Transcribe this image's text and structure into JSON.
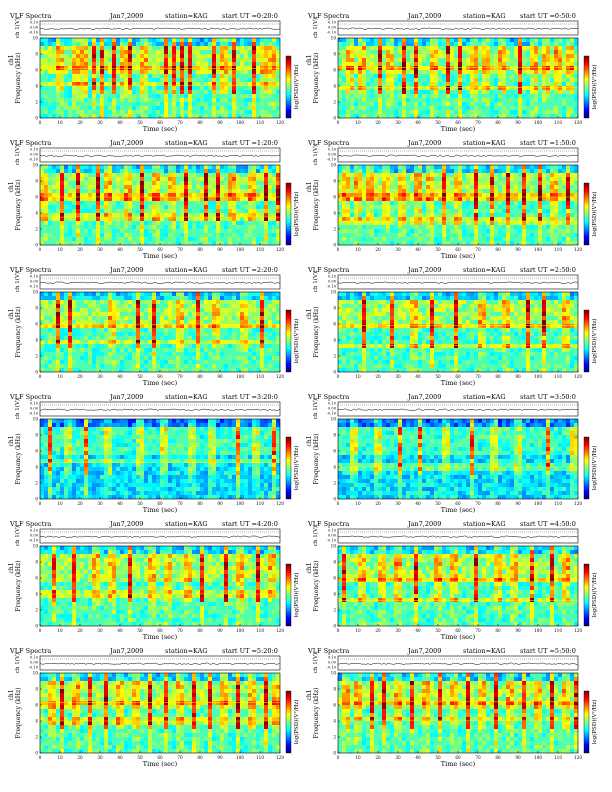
{
  "chart_data": [
    {
      "type": "heatmap",
      "title_parts": [
        "VLF Spectra",
        "Jan7,2009",
        "station=KAG",
        "start UT =0:20:0"
      ],
      "xlabel": "Time (sec)",
      "ylabel": "Frequency (kHz)",
      "top_ylabel": "ch 1(V)",
      "top_ticks": [
        "0.10",
        "0.00",
        "-0.10"
      ],
      "colorbar_label": "log(PSD)(V²/Hz)",
      "xlim": [
        0,
        120
      ],
      "ylim": [
        0,
        10
      ],
      "xticks": [
        "0",
        "10",
        "20",
        "30",
        "40",
        "50",
        "60",
        "70",
        "80",
        "90",
        "100",
        "110",
        "120"
      ],
      "yticks": [
        "0",
        "2",
        "4",
        "6",
        "8",
        "10"
      ],
      "channel_label": "ch1",
      "bursts": [
        10,
        18,
        22,
        27,
        31,
        37,
        42,
        45,
        52,
        63,
        67,
        71,
        75,
        87,
        92,
        97,
        107,
        112,
        116
      ],
      "lines": [
        6.2,
        4.1
      ]
    },
    {
      "type": "heatmap",
      "title_parts": [
        "VLF Spectra",
        "Jan7,2009",
        "station=KAG",
        "start UT =0:50:0"
      ],
      "xlabel": "Time (sec)",
      "ylabel": "Frequency (kHz)",
      "top_ylabel": "ch 1(V)",
      "top_ticks": [
        "0.10",
        "0.00",
        "-0.10"
      ],
      "colorbar_label": "log(PSD)(V²/Hz)",
      "xlim": [
        0,
        120
      ],
      "ylim": [
        0,
        10
      ],
      "xticks": [
        "0",
        "10",
        "20",
        "30",
        "40",
        "50",
        "60",
        "70",
        "80",
        "90",
        "100",
        "110",
        "120"
      ],
      "yticks": [
        "0",
        "2",
        "4",
        "6",
        "8",
        "10"
      ],
      "channel_label": "ch1",
      "bursts": [
        6,
        12,
        21,
        26,
        33,
        39,
        48,
        55,
        61,
        68,
        74,
        82,
        91,
        98,
        104,
        110,
        116
      ],
      "lines": [
        6.3,
        3.8
      ]
    },
    {
      "type": "heatmap",
      "title_parts": [
        "VLF Spectra",
        "Jan7,2009",
        "station=KAG",
        "start UT =1:20:0"
      ],
      "xlabel": "Time (sec)",
      "ylabel": "Frequency (kHz)",
      "top_ylabel": "ch 1(V)",
      "top_ticks": [
        "0.10",
        "0.00",
        "-0.10"
      ],
      "colorbar_label": "log(PSD)(V²/Hz)",
      "xlim": [
        0,
        120
      ],
      "ylim": [
        0,
        10
      ],
      "xticks": [
        "0",
        "10",
        "20",
        "30",
        "40",
        "50",
        "60",
        "70",
        "80",
        "90",
        "100",
        "110",
        "120"
      ],
      "yticks": [
        "0",
        "2",
        "4",
        "6",
        "8",
        "10"
      ],
      "channel_label": "ch1",
      "bursts": [
        2,
        11,
        19,
        29,
        34,
        44,
        51,
        58,
        66,
        73,
        83,
        89,
        96,
        106,
        113,
        119
      ],
      "lines": [
        6.0,
        3.5
      ]
    },
    {
      "type": "heatmap",
      "title_parts": [
        "VLF Spectra",
        "Jan7,2009",
        "station=KAG",
        "start UT =1:50:0"
      ],
      "xlabel": "Time (sec)",
      "ylabel": "Frequency (kHz)",
      "top_ylabel": "ch 1(V)",
      "top_ticks": [
        "0.10",
        "0.00",
        "-0.10"
      ],
      "colorbar_label": "log(PSD)(V²/Hz)",
      "xlim": [
        0,
        120
      ],
      "ylim": [
        0,
        10
      ],
      "xticks": [
        "0",
        "10",
        "20",
        "30",
        "40",
        "50",
        "60",
        "70",
        "80",
        "90",
        "100",
        "110",
        "120"
      ],
      "yticks": [
        "0",
        "2",
        "4",
        "6",
        "8",
        "10"
      ],
      "channel_label": "ch1",
      "bursts": [
        4,
        10,
        16,
        24,
        32,
        40,
        46,
        53,
        60,
        69,
        77,
        85,
        93,
        101,
        108,
        115
      ],
      "lines": [
        6.0,
        3.0
      ]
    },
    {
      "type": "heatmap",
      "title_parts": [
        "VLF Spectra",
        "Jan7,2009",
        "station=KAG",
        "start UT =2:20:0"
      ],
      "xlabel": "Time (sec)",
      "ylabel": "Frequency (kHz)",
      "top_ylabel": "ch 1(V)",
      "top_ticks": [
        "0.10",
        "0.00",
        "-0.10"
      ],
      "colorbar_label": "log(PSD)(V²/Hz)",
      "xlim": [
        0,
        120
      ],
      "ylim": [
        0,
        10
      ],
      "xticks": [
        "0",
        "10",
        "20",
        "30",
        "40",
        "50",
        "60",
        "70",
        "80",
        "90",
        "100",
        "110",
        "120"
      ],
      "yticks": [
        "0",
        "2",
        "4",
        "6",
        "8",
        "10"
      ],
      "channel_label": "ch1",
      "bursts": [
        9,
        15,
        36,
        49,
        57,
        70,
        79,
        88,
        102,
        111
      ],
      "lines": [
        5.9,
        3.6
      ]
    },
    {
      "type": "heatmap",
      "title_parts": [
        "VLF Spectra",
        "Jan7,2009",
        "station=KAG",
        "start UT =2:50:0"
      ],
      "xlabel": "Time (sec)",
      "ylabel": "Frequency (kHz)",
      "top_ylabel": "ch 1(V)",
      "top_ticks": [
        "0.10",
        "0.00",
        "-0.10"
      ],
      "colorbar_label": "log(PSD)(V²/Hz)",
      "xlim": [
        0,
        120
      ],
      "ylim": [
        0,
        10
      ],
      "xticks": [
        "0",
        "10",
        "20",
        "30",
        "40",
        "50",
        "60",
        "70",
        "80",
        "90",
        "100",
        "110",
        "120"
      ],
      "yticks": [
        "0",
        "2",
        "4",
        "6",
        "8",
        "10"
      ],
      "channel_label": "ch1",
      "bursts": [
        13,
        27,
        38,
        47,
        59,
        72,
        84,
        95,
        103,
        114
      ],
      "lines": [
        5.8,
        3.3
      ]
    },
    {
      "type": "heatmap",
      "title_parts": [
        "VLF Spectra",
        "Jan7,2009",
        "station=KAG",
        "start UT =3:20:0"
      ],
      "xlabel": "Time (sec)",
      "ylabel": "Frequency (kHz)",
      "top_ylabel": "ch 1(V)",
      "top_ticks": [
        "0.10",
        "0.00",
        "-0.10"
      ],
      "colorbar_label": "log(PSD)(V²/Hz)",
      "xlim": [
        0,
        120
      ],
      "ylim": [
        0,
        10
      ],
      "xticks": [
        "0",
        "10",
        "20",
        "30",
        "40",
        "50",
        "60",
        "70",
        "80",
        "90",
        "100",
        "110",
        "120"
      ],
      "yticks": [
        "0",
        "2",
        "4",
        "6",
        "8",
        "10"
      ],
      "channel_label": "ch1",
      "bursts": [
        5,
        14,
        23,
        34,
        50,
        62,
        76,
        86,
        99,
        108,
        117
      ],
      "lines": [
        4.6
      ]
    },
    {
      "type": "heatmap",
      "title_parts": [
        "VLF Spectra",
        "Jan7,2009",
        "station=KAG",
        "start UT =3:50:0"
      ],
      "xlabel": "Time (sec)",
      "ylabel": "Frequency (kHz)",
      "top_ylabel": "ch 1(V)",
      "top_ticks": [
        "0.10",
        "0.00",
        "-0.10"
      ],
      "colorbar_label": "log(PSD)(V²/Hz)",
      "xlim": [
        0,
        120
      ],
      "ylim": [
        0,
        10
      ],
      "xticks": [
        "0",
        "10",
        "20",
        "30",
        "40",
        "50",
        "60",
        "70",
        "80",
        "90",
        "100",
        "110",
        "120"
      ],
      "yticks": [
        "0",
        "2",
        "4",
        "6",
        "8",
        "10"
      ],
      "channel_label": "ch1",
      "bursts": [
        8,
        20,
        31,
        41,
        54,
        67,
        78,
        90,
        105,
        118
      ],
      "lines": [
        4.0
      ]
    },
    {
      "type": "heatmap",
      "title_parts": [
        "VLF Spectra",
        "Jan7,2009",
        "station=KAG",
        "start UT =4:20:0"
      ],
      "xlabel": "Time (sec)",
      "ylabel": "Frequency (kHz)",
      "top_ylabel": "ch 1(V)",
      "top_ticks": [
        "0.10",
        "0.00",
        "-0.10"
      ],
      "colorbar_label": "log(PSD)(V²/Hz)",
      "xlim": [
        0,
        120
      ],
      "ylim": [
        0,
        10
      ],
      "xticks": [
        "0",
        "10",
        "20",
        "30",
        "40",
        "50",
        "60",
        "70",
        "80",
        "90",
        "100",
        "110",
        "120"
      ],
      "yticks": [
        "0",
        "2",
        "4",
        "6",
        "8",
        "10"
      ],
      "channel_label": "ch1",
      "bursts": [
        7,
        17,
        28,
        36,
        45,
        56,
        64,
        74,
        81,
        93,
        100,
        109,
        116
      ],
      "lines": [
        4.0
      ]
    },
    {
      "type": "heatmap",
      "title_parts": [
        "VLF Spectra",
        "Jan7,2009",
        "station=KAG",
        "start UT =4:50:0"
      ],
      "xlabel": "Time (sec)",
      "ylabel": "Frequency (kHz)",
      "top_ylabel": "ch 1(V)",
      "top_ticks": [
        "0.10",
        "0.00",
        "-0.10"
      ],
      "colorbar_label": "log(PSD)(V²/Hz)",
      "xlim": [
        0,
        120
      ],
      "ylim": [
        0,
        10
      ],
      "xticks": [
        "0",
        "10",
        "20",
        "30",
        "40",
        "50",
        "60",
        "70",
        "80",
        "90",
        "100",
        "110",
        "120"
      ],
      "yticks": [
        "0",
        "2",
        "4",
        "6",
        "8",
        "10"
      ],
      "channel_label": "ch1",
      "bursts": [
        3,
        12,
        22,
        30,
        39,
        50,
        58,
        69,
        80,
        88,
        97,
        107,
        114
      ],
      "lines": [
        5.6,
        3.2
      ]
    },
    {
      "type": "heatmap",
      "title_parts": [
        "VLF Spectra",
        "Jan7,2009",
        "station=KAG",
        "start UT =5:20:0"
      ],
      "xlabel": "Time (sec)",
      "ylabel": "Frequency (kHz)",
      "top_ylabel": "ch 1(V)",
      "top_ticks": [
        "0.10",
        "0.00",
        "-0.10"
      ],
      "colorbar_label": "log(PSD)(V²/Hz)",
      "xlim": [
        0,
        120
      ],
      "ylim": [
        0,
        10
      ],
      "xticks": [
        "0",
        "10",
        "20",
        "30",
        "40",
        "50",
        "60",
        "70",
        "80",
        "90",
        "100",
        "110",
        "120"
      ],
      "yticks": [
        "0",
        "2",
        "4",
        "6",
        "8",
        "10"
      ],
      "channel_label": "ch1",
      "bursts": [
        6,
        11,
        18,
        25,
        33,
        40,
        48,
        55,
        63,
        70,
        77,
        85,
        92,
        99,
        106,
        113,
        118
      ],
      "lines": [
        6.3,
        4.0
      ]
    },
    {
      "type": "heatmap",
      "title_parts": [
        "VLF Spectra",
        "Jan7,2009",
        "station=KAG",
        "start UT =5:50:0"
      ],
      "xlabel": "Time (sec)",
      "ylabel": "Frequency (kHz)",
      "top_ylabel": "ch 1(V)",
      "top_ticks": [
        "0.10",
        "0.00",
        "-0.10"
      ],
      "colorbar_label": "log(PSD)(V²/Hz)",
      "xlim": [
        0,
        120
      ],
      "ylim": [
        0,
        10
      ],
      "xticks": [
        "0",
        "10",
        "20",
        "30",
        "40",
        "50",
        "60",
        "70",
        "80",
        "90",
        "100",
        "110",
        "120"
      ],
      "yticks": [
        "0",
        "2",
        "4",
        "6",
        "8",
        "10"
      ],
      "channel_label": "ch1",
      "bursts": [
        4,
        10,
        17,
        23,
        30,
        37,
        44,
        51,
        58,
        65,
        72,
        79,
        86,
        93,
        100,
        107,
        114,
        119
      ],
      "lines": [
        6.4,
        4.1
      ]
    }
  ],
  "colors": {
    "colormap": [
      "#00007f",
      "#0000ff",
      "#007fff",
      "#00ffff",
      "#7fff7f",
      "#ffff00",
      "#ff7f00",
      "#ff0000",
      "#7f0000"
    ]
  }
}
